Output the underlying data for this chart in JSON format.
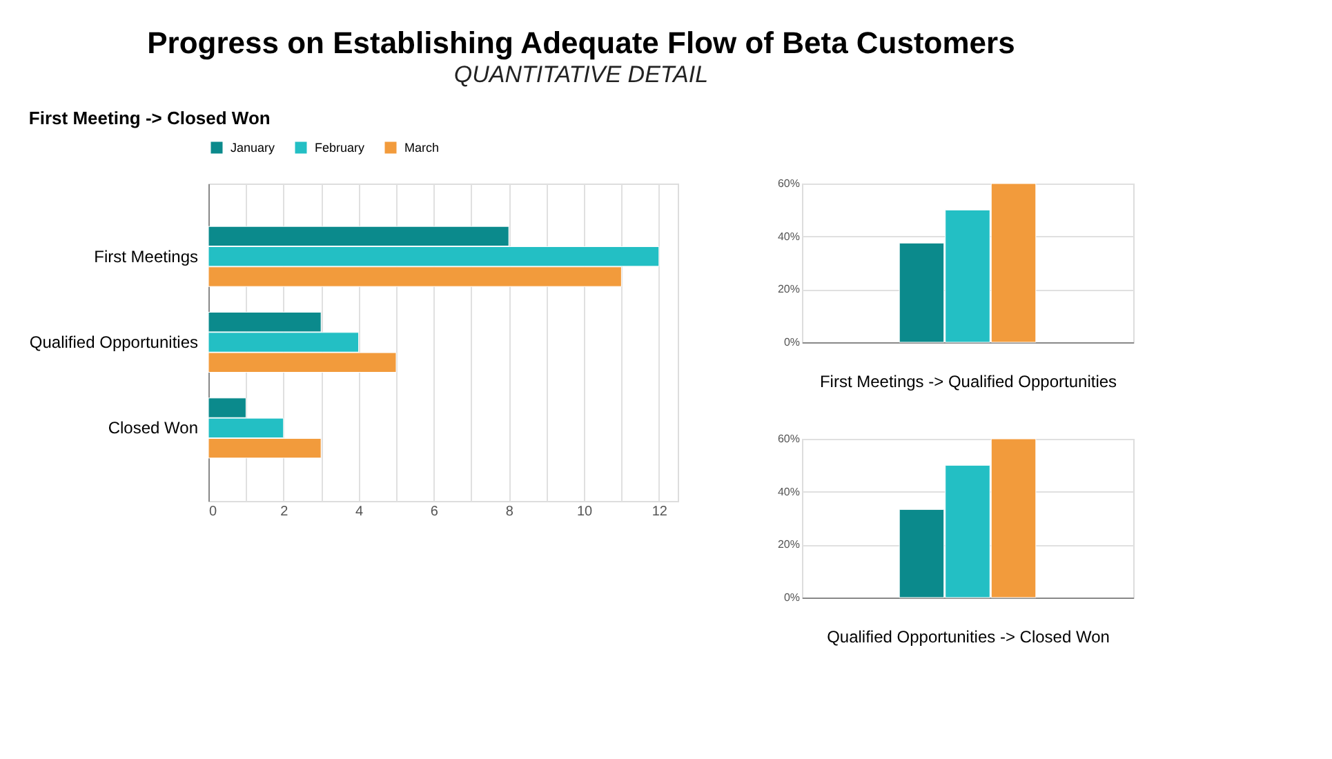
{
  "chart_data": [
    {
      "type": "bar",
      "title": "Progress on Establishing Adequate Flow of Beta Customers",
      "subtitle": "QUANTITATIVE DETAIL",
      "annotations": [
        "First Meeting -> Closed Won"
      ],
      "orientation": "horizontal",
      "categories": [
        "First Meetings",
        "Qualified Opportunities",
        "Closed Won"
      ],
      "series": [
        {
          "name": "January",
          "color": "#0b8a8c",
          "values": [
            8,
            3,
            1
          ]
        },
        {
          "name": "February",
          "color": "#23bfc4",
          "values": [
            12,
            4,
            2
          ]
        },
        {
          "name": "March",
          "color": "#f29b3c",
          "values": [
            11,
            5,
            3
          ]
        }
      ],
      "xlim": [
        0,
        12.5
      ],
      "xticks": [
        0,
        {
          "value": 1,
          "label": null
        },
        2,
        {
          "value": 3,
          "label": null
        },
        4,
        {
          "value": 5,
          "label": null
        },
        6,
        {
          "value": 7,
          "label": null
        },
        8,
        {
          "value": 9,
          "label": null
        },
        10,
        {
          "value": 11,
          "label": null
        },
        12
      ],
      "grid": "x",
      "legend": "top"
    },
    {
      "type": "bar",
      "xlabel": "First Meetings -> Qualified Opportunities",
      "categories": [
        null
      ],
      "series": [
        {
          "color": "#0b8a8c",
          "values": [
            37.5
          ]
        },
        {
          "color": "#23bfc4",
          "values": [
            50
          ]
        },
        {
          "color": "#f29b3c",
          "values": [
            60
          ]
        }
      ],
      "ylim": [
        0,
        60
      ],
      "yticks": [
        {
          "value": 0,
          "label": "0%"
        },
        {
          "value": 20,
          "label": "20%"
        },
        {
          "value": 40,
          "label": "40%"
        },
        {
          "value": 60,
          "label": "60%"
        }
      ],
      "grid": "y"
    },
    {
      "type": "bar",
      "xlabel": "Qualified Opportunities -> Closed Won",
      "categories": [
        null
      ],
      "series": [
        {
          "color": "#0b8a8c",
          "values": [
            33.3
          ]
        },
        {
          "color": "#23bfc4",
          "values": [
            50
          ]
        },
        {
          "color": "#f29b3c",
          "values": [
            60
          ]
        }
      ],
      "ylim": [
        0,
        60
      ],
      "yticks": [
        {
          "value": 0,
          "label": "0%"
        },
        {
          "value": 20,
          "label": "20%"
        },
        {
          "value": 40,
          "label": "40%"
        },
        {
          "value": 60,
          "label": "60%"
        }
      ],
      "grid": "y"
    }
  ]
}
